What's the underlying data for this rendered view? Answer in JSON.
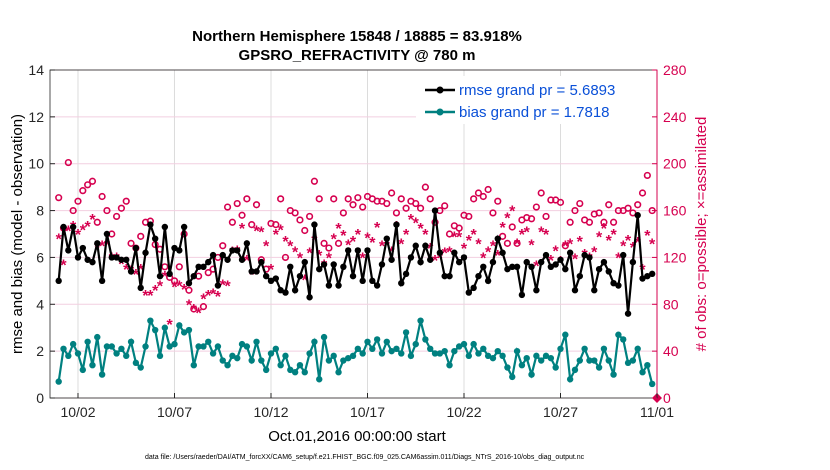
{
  "chart_data": {
    "type": "line",
    "title": [
      "Northern Hemisphere 15848 / 18885 = 83.918%",
      "GPSRO_REFRACTIVITY @ 780 m"
    ],
    "xlabel": "Oct.01,2016 00:00:00 start",
    "ylabel": "rmse and bias (model - observation)",
    "ylabel_right": "# of obs: o=possible; ×=assimilated",
    "footer": "data file: /Users/raeder/DAI/ATM_forcXX/CAM6_setup/f.e21.FHIST_BGC.f09_025.CAM6assim.011/Diags_NTrS_2016-10/obs_diag_output.nc",
    "xlim": [
      -0.45,
      31
    ],
    "ylim": [
      0,
      14
    ],
    "ylim_right": [
      0,
      280
    ],
    "x_ticks": [
      {
        "v": 1,
        "label": "10/02"
      },
      {
        "v": 6,
        "label": "10/07"
      },
      {
        "v": 11,
        "label": "10/12"
      },
      {
        "v": 16,
        "label": "10/17"
      },
      {
        "v": 21,
        "label": "10/22"
      },
      {
        "v": 26,
        "label": "10/27"
      },
      {
        "v": 31,
        "label": "11/01"
      }
    ],
    "y_ticks": [
      0,
      2,
      4,
      6,
      8,
      10,
      12,
      14
    ],
    "y_ticks_right": [
      0,
      40,
      80,
      120,
      160,
      200,
      240,
      280
    ],
    "x_start": 0,
    "x_step": 0.25,
    "legend": [
      {
        "label": "rmse grand pr = 5.6893",
        "color": "#000000"
      },
      {
        "label": "bias grand pr = 1.7818",
        "color": "#008080"
      }
    ],
    "legend_position": "top-right",
    "series": [
      {
        "name": "rmse",
        "color": "#000000",
        "axis": "left",
        "values": [
          5.0,
          7.3,
          6.3,
          7.3,
          6.0,
          6.4,
          5.9,
          5.8,
          6.6,
          5.0,
          7.0,
          6.0,
          6.0,
          5.9,
          5.9,
          5.4,
          6.4,
          4.7,
          6.2,
          7.4,
          6.8,
          5.2,
          7.3,
          5.3,
          6.4,
          6.3,
          7.3,
          4.9,
          5.2,
          5.6,
          5.6,
          5.8,
          6.1,
          4.8,
          6.1,
          5.9,
          6.3,
          6.3,
          5.9,
          6.6,
          5.4,
          5.4,
          5.8,
          5.2,
          5.0,
          5.1,
          4.6,
          4.5,
          5.6,
          4.6,
          5.2,
          5.8,
          4.3,
          7.4,
          5.5,
          5.7,
          4.8,
          5.7,
          4.8,
          5.6,
          6.3,
          5.2,
          6.3,
          5.0,
          6.3,
          5.0,
          4.8,
          5.7,
          6.8,
          5.9,
          7.4,
          4.9,
          5.3,
          6.0,
          6.5,
          5.8,
          6.5,
          5.9,
          8.0,
          6.2,
          5.2,
          5.2,
          6.2,
          5.8,
          6.0,
          4.5,
          4.7,
          5.2,
          5.6,
          5.0,
          5.8,
          6.8,
          6.2,
          5.5,
          5.6,
          5.6,
          4.4,
          5.8,
          5.6,
          4.6,
          5.8,
          6.1,
          5.6,
          5.7,
          5.9,
          5.5,
          6.2,
          4.6,
          5.2,
          6.1,
          6.0,
          4.6,
          5.5,
          5.8,
          5.4,
          4.9,
          4.8,
          6.1,
          3.6,
          5.8,
          7.8,
          5.1,
          5.2,
          5.3
        ]
      },
      {
        "name": "bias",
        "color": "#008080",
        "axis": "left",
        "values": [
          0.7,
          2.1,
          1.8,
          2.3,
          1.9,
          1.2,
          2.4,
          1.4,
          2.6,
          1.0,
          2.2,
          2.2,
          1.9,
          2.1,
          1.8,
          2.4,
          1.5,
          1.3,
          2.2,
          3.3,
          2.9,
          1.8,
          3.0,
          2.2,
          2.3,
          3.1,
          2.8,
          2.9,
          1.4,
          2.2,
          2.2,
          2.4,
          1.9,
          2.2,
          1.6,
          1.4,
          1.8,
          1.7,
          2.3,
          2.2,
          1.6,
          2.4,
          1.6,
          1.2,
          1.9,
          2.1,
          1.4,
          1.8,
          1.2,
          1.1,
          1.4,
          1.1,
          1.9,
          2.4,
          0.8,
          2.6,
          1.6,
          1.8,
          1.1,
          1.6,
          1.7,
          1.8,
          2.1,
          1.9,
          2.4,
          2.1,
          2.5,
          1.9,
          2.4,
          2.0,
          2.1,
          1.9,
          2.8,
          1.8,
          2.3,
          3.3,
          2.5,
          2.1,
          1.9,
          1.9,
          2.0,
          1.4,
          2.0,
          2.2,
          2.3,
          1.8,
          2.3,
          1.9,
          2.1,
          1.8,
          1.7,
          2.0,
          1.8,
          1.3,
          0.9,
          2.0,
          1.4,
          1.7,
          1.0,
          1.8,
          1.6,
          1.8,
          1.7,
          1.3,
          2.1,
          2.7,
          0.8,
          1.2,
          1.6,
          2.1,
          1.6,
          1.6,
          1.3,
          2.1,
          1.6,
          1.0,
          2.7,
          2.5,
          1.5,
          1.6,
          2.1,
          1.1,
          1.4,
          0.6
        ]
      },
      {
        "name": "possible",
        "color": "#d6004f",
        "axis": "right",
        "marker": "o",
        "values": [
          171,
          145,
          201,
          160,
          168,
          177,
          182,
          185,
          150,
          172,
          160,
          140,
          155,
          162,
          168,
          132,
          128,
          138,
          150,
          151,
          131,
          127,
          112,
          103,
          100,
          112,
          140,
          92,
          76,
          104,
          78,
          107,
          110,
          120,
          130,
          163,
          150,
          166,
          156,
          170,
          148,
          165,
          118,
          110,
          149,
          148,
          170,
          120,
          160,
          158,
          152,
          143,
          155,
          185,
          170,
          132,
          128,
          170,
          132,
          158,
          170,
          165,
          171,
          163,
          172,
          170,
          168,
          168,
          166,
          175,
          158,
          170,
          162,
          168,
          166,
          162,
          180,
          170,
          150,
          160,
          164,
          140,
          147,
          145,
          156,
          155,
          170,
          175,
          172,
          178,
          158,
          168,
          138,
          132,
          146,
          132,
          152,
          154,
          153,
          163,
          175,
          155,
          169,
          169,
          167,
          130,
          150,
          160,
          166,
          152,
          150,
          157,
          158,
          150,
          165,
          150,
          160,
          160,
          162,
          158,
          165,
          175,
          190,
          160
        ]
      },
      {
        "name": "assimilated",
        "color": "#d6004f",
        "axis": "right",
        "marker": "*",
        "values": [
          136,
          114,
          143,
          147,
          140,
          144,
          147,
          153,
          129,
          130,
          131,
          120,
          120,
          115,
          110,
          109,
          106,
          110,
          88,
          88,
          92,
          96,
          104,
          63,
          95,
          96,
          93,
          80,
          76,
          73,
          85,
          88,
          89,
          87,
          97,
          96,
          125,
          126,
          145,
          118,
          106,
          143,
          142,
          130,
          110,
          140,
          144,
          134,
          130,
          125,
          120,
          101,
          124,
          135,
          122,
          114,
          120,
          136,
          145,
          139,
          131,
          134,
          140,
          120,
          137,
          133,
          146,
          130,
          130,
          125,
          147,
          132,
          140,
          153,
          150,
          145,
          140,
          128,
          118,
          120,
          124,
          125,
          138,
          138,
          128,
          135,
          140,
          132,
          120,
          125,
          130,
          122,
          146,
          154,
          160,
          132,
          140,
          142,
          131,
          113,
          142,
          140,
          118,
          126,
          117,
          130,
          132,
          119,
          134,
          123,
          120,
          125,
          138,
          145,
          135,
          140,
          120,
          130,
          135,
          129,
          133,
          110,
          139,
          132
        ]
      }
    ],
    "markers": [
      {
        "name": "end-marker",
        "x": 31,
        "y": 0,
        "color": "#d6004f"
      }
    ]
  }
}
